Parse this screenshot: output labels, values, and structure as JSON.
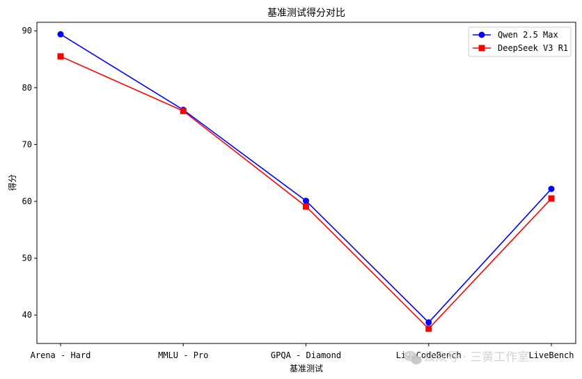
{
  "chart_data": {
    "type": "line",
    "title": "基准测试得分对比",
    "xlabel": "基准测试",
    "ylabel": "得分",
    "categories": [
      "Arena - Hard",
      "MMLU - Pro",
      "GPQA - Diamond",
      "LiveCodeBench",
      "LiveBench"
    ],
    "ylim": [
      35,
      91.5
    ],
    "yticks": [
      40,
      50,
      60,
      70,
      80,
      90
    ],
    "grid": false,
    "legend_position": "top-right",
    "series": [
      {
        "name": "Qwen 2.5 Max",
        "values": [
          89.4,
          76.1,
          60.1,
          38.7,
          62.2
        ],
        "color": "#0000ff",
        "marker": "circle"
      },
      {
        "name": "DeepSeek V3 R1",
        "values": [
          85.5,
          75.9,
          59.1,
          37.6,
          60.5
        ],
        "color": "#ff0000",
        "marker": "square"
      }
    ]
  },
  "watermark": {
    "text": "公众号 · 三黄工作室",
    "icon": "wechat-icon"
  }
}
